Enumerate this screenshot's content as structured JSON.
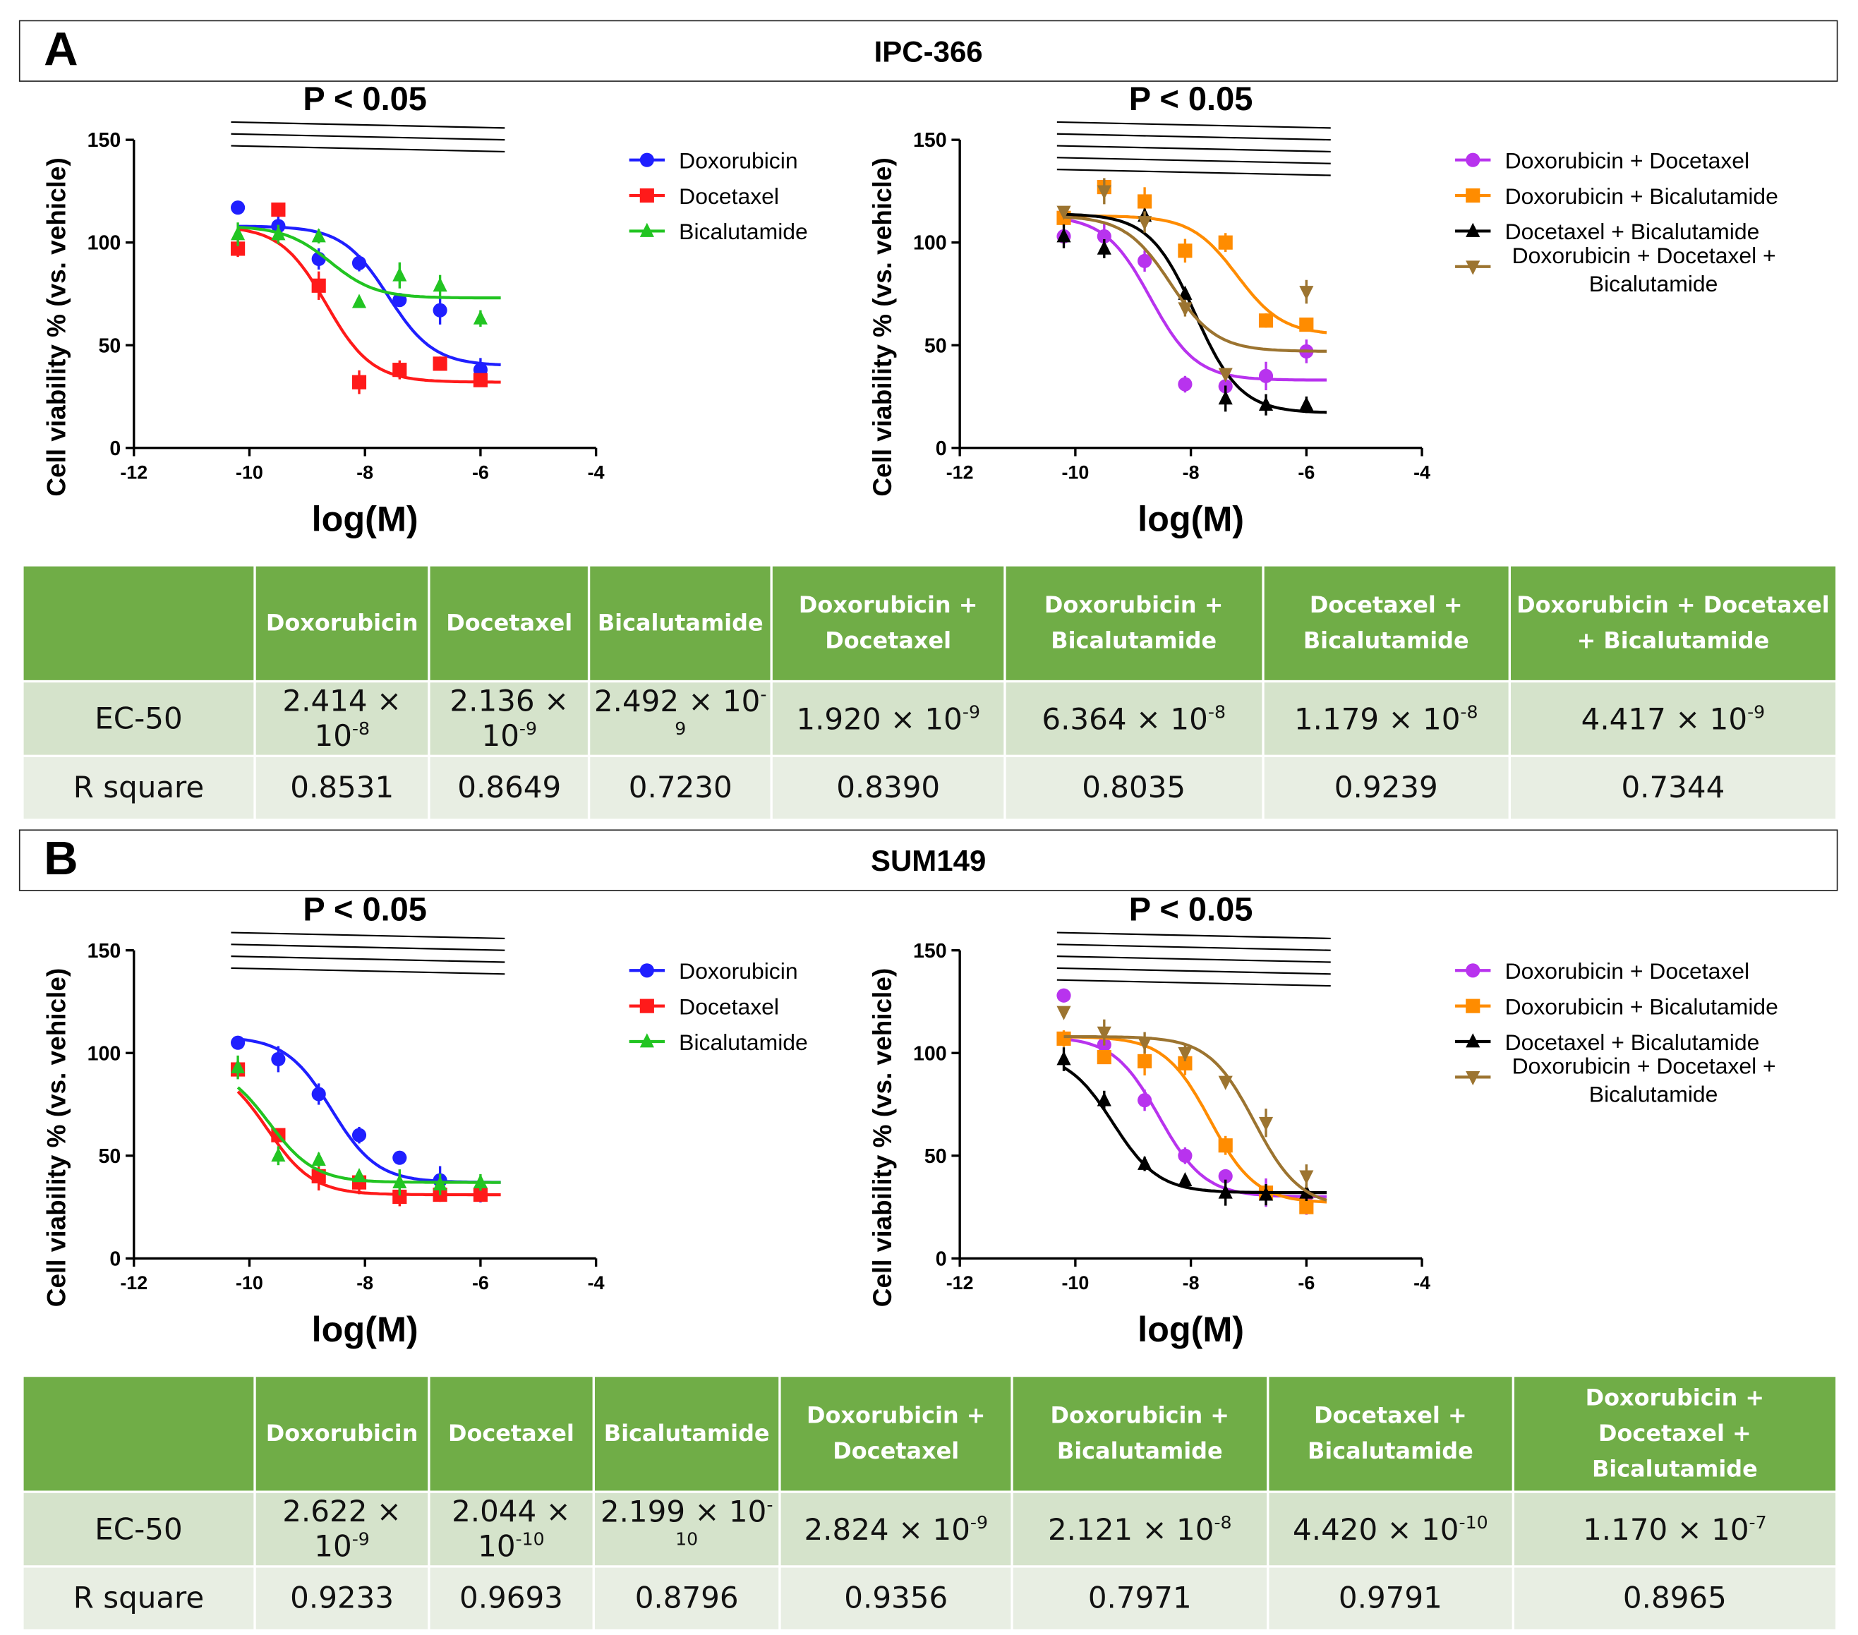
{
  "panels": [
    {
      "letter": "A",
      "title": "IPC-366",
      "table": {
        "columns": [
          "",
          "Doxorubicin",
          "Docetaxel",
          "Bicalutamide",
          "Doxorubicin + Docetaxel",
          "Doxorubicin + Bicalutamide",
          "Docetaxel + Bicalutamide",
          "Doxorubicin + Docetaxel + Bicalutamide"
        ],
        "rows": [
          {
            "label": "EC-50",
            "values": [
              {
                "m": "2.414 × 10",
                "e": "-8"
              },
              {
                "m": "2.136 × 10",
                "e": "-9"
              },
              {
                "m": "2.492 × 10",
                "e": "-9"
              },
              {
                "m": "1.920 × 10",
                "e": "-9"
              },
              {
                "m": "6.364 × 10",
                "e": "-8"
              },
              {
                "m": "1.179 × 10",
                "e": "-8"
              },
              {
                "m": "4.417 × 10",
                "e": "-9"
              }
            ]
          },
          {
            "label": "R square",
            "values": [
              {
                "m": "0.8531"
              },
              {
                "m": "0.8649"
              },
              {
                "m": "0.7230"
              },
              {
                "m": "0.8390"
              },
              {
                "m": "0.8035"
              },
              {
                "m": "0.9239"
              },
              {
                "m": "0.7344"
              }
            ]
          }
        ]
      }
    },
    {
      "letter": "B",
      "title": "SUM149",
      "table": {
        "columns": [
          "",
          "Doxorubicin",
          "Docetaxel",
          "Bicalutamide",
          "Doxorubicin + Docetaxel",
          "Doxorubicin + Bicalutamide",
          "Docetaxel + Bicalutamide",
          "Doxorubicin + Docetaxel + Bicalutamide"
        ],
        "rows": [
          {
            "label": "EC-50",
            "values": [
              {
                "m": "2.622 × 10",
                "e": "-9"
              },
              {
                "m": "2.044 × 10",
                "e": "-10"
              },
              {
                "m": "2.199 × 10",
                "e": "-10"
              },
              {
                "m": "2.824 × 10",
                "e": "-9"
              },
              {
                "m": "2.121 × 10",
                "e": "-8"
              },
              {
                "m": "4.420 × 10",
                "e": "-10"
              },
              {
                "m": "1.170 × 10",
                "e": "-7"
              }
            ]
          },
          {
            "label": "R square",
            "values": [
              {
                "m": "0.9233"
              },
              {
                "m": "0.9693"
              },
              {
                "m": "0.8796"
              },
              {
                "m": "0.9356"
              },
              {
                "m": "0.7971"
              },
              {
                "m": "0.9791"
              },
              {
                "m": "0.8965"
              }
            ]
          }
        ]
      }
    }
  ],
  "chart_data": [
    {
      "type": "scatter",
      "panel": "A",
      "position": "left",
      "title": "P < 0.05",
      "sig_lines": 3,
      "xlabel": "log(M)",
      "ylabel": "Cell viability % (vs. vehicle)",
      "xlim": [
        -12,
        -4
      ],
      "ylim": [
        0,
        150
      ],
      "xticks": [
        "-12",
        "-10",
        "-8",
        "-6",
        "-4"
      ],
      "yticks": [
        "0",
        "50",
        "100",
        "150"
      ],
      "legend": "right",
      "x": [
        -10.2,
        -9.5,
        -8.8,
        -8.1,
        -7.4,
        -6.7,
        -6.0
      ],
      "series": [
        {
          "name": "Doxorubicin",
          "color": "#1f1fff",
          "marker": "circle",
          "values": [
            117,
            108,
            92,
            90,
            72,
            67,
            38
          ],
          "fit": {
            "top": 108,
            "bottom": 40,
            "logEC50": -7.6
          }
        },
        {
          "name": "Docetaxel",
          "color": "#ff1a1a",
          "marker": "square",
          "values": [
            97,
            116,
            79,
            32,
            38,
            41,
            33
          ],
          "fit": {
            "top": 108,
            "bottom": 32,
            "logEC50": -8.67
          }
        },
        {
          "name": "Bicalutamide",
          "color": "#22c422",
          "marker": "triangle",
          "values": [
            104,
            104,
            103,
            71,
            84,
            79,
            63
          ],
          "fit": {
            "top": 108,
            "bottom": 73,
            "logEC50": -8.6
          }
        }
      ]
    },
    {
      "type": "scatter",
      "panel": "A",
      "position": "right",
      "title": "P < 0.05",
      "sig_lines": 5,
      "xlabel": "log(M)",
      "ylabel": "Cell viability % (vs. vehicle)",
      "xlim": [
        -12,
        -4
      ],
      "ylim": [
        0,
        150
      ],
      "xticks": [
        "-12",
        "-10",
        "-8",
        "-6",
        "-4"
      ],
      "yticks": [
        "0",
        "50",
        "100",
        "150"
      ],
      "legend": "right",
      "x": [
        -10.2,
        -9.5,
        -8.8,
        -8.1,
        -7.4,
        -6.7,
        -6.0
      ],
      "series": [
        {
          "name": "Doxorubicin + Docetaxel",
          "color": "#b833ee",
          "marker": "circle",
          "values": [
            103,
            103,
            91,
            31,
            30,
            35,
            47
          ],
          "fit": {
            "top": 113,
            "bottom": 33,
            "logEC50": -8.7
          }
        },
        {
          "name": "Doxorubicin + Bicalutamide",
          "color": "#ff8c00",
          "marker": "square",
          "values": [
            112,
            127,
            120,
            96,
            100,
            62,
            60
          ],
          "fit": {
            "top": 113,
            "bottom": 55,
            "logEC50": -7.2
          }
        },
        {
          "name": "Docetaxel + Bicalutamide",
          "color": "#000000",
          "marker": "triangle",
          "values": [
            103,
            97,
            113,
            75,
            24,
            21,
            21
          ],
          "fit": {
            "top": 114,
            "bottom": 17,
            "logEC50": -7.93
          }
        },
        {
          "name": "Doxorubicin + Docetaxel + Bicalutamide",
          "color": "#9c7430",
          "marker": "triangle-down",
          "values": [
            115,
            125,
            110,
            68,
            36,
            null,
            76
          ],
          "fit": {
            "top": 113,
            "bottom": 47,
            "logEC50": -8.35
          }
        }
      ]
    },
    {
      "type": "scatter",
      "panel": "B",
      "position": "left",
      "title": "P < 0.05",
      "sig_lines": 4,
      "xlabel": "log(M)",
      "ylabel": "Cell viability % (vs. vehicle)",
      "xlim": [
        -12,
        -4
      ],
      "ylim": [
        0,
        150
      ],
      "xticks": [
        "-12",
        "-10",
        "-8",
        "-6",
        "-4"
      ],
      "yticks": [
        "0",
        "50",
        "100",
        "150"
      ],
      "legend": "right",
      "x": [
        -10.2,
        -9.5,
        -8.8,
        -8.1,
        -7.4,
        -6.7,
        -6.0
      ],
      "series": [
        {
          "name": "Doxorubicin",
          "color": "#1f1fff",
          "marker": "circle",
          "values": [
            105,
            97,
            80,
            60,
            49,
            38,
            33
          ],
          "fit": {
            "top": 108,
            "bottom": 37,
            "logEC50": -8.58
          }
        },
        {
          "name": "Docetaxel",
          "color": "#ff1a1a",
          "marker": "square",
          "values": [
            92,
            60,
            40,
            37,
            30,
            31,
            31
          ],
          "fit": {
            "top": 95,
            "bottom": 31,
            "logEC50": -9.69
          }
        },
        {
          "name": "Bicalutamide",
          "color": "#22c422",
          "marker": "triangle",
          "values": [
            93,
            50,
            48,
            40,
            37,
            36,
            37
          ],
          "fit": {
            "top": 95,
            "bottom": 37,
            "logEC50": -9.66
          }
        }
      ]
    },
    {
      "type": "scatter",
      "panel": "B",
      "position": "right",
      "title": "P < 0.05",
      "sig_lines": 5,
      "xlabel": "log(M)",
      "ylabel": "Cell viability % (vs. vehicle)",
      "xlim": [
        -12,
        -4
      ],
      "ylim": [
        0,
        150
      ],
      "xticks": [
        "-12",
        "-10",
        "-8",
        "-6",
        "-4"
      ],
      "yticks": [
        "0",
        "50",
        "100",
        "150"
      ],
      "legend": "right",
      "x": [
        -10.2,
        -9.5,
        -8.8,
        -8.1,
        -7.4,
        -6.7,
        -6.0
      ],
      "series": [
        {
          "name": "Doxorubicin + Docetaxel",
          "color": "#b833ee",
          "marker": "circle",
          "values": [
            128,
            104,
            77,
            50,
            40,
            32,
            27
          ],
          "fit": {
            "top": 108,
            "bottom": 30,
            "logEC50": -8.55
          }
        },
        {
          "name": "Doxorubicin + Bicalutamide",
          "color": "#ff8c00",
          "marker": "square",
          "values": [
            107,
            98,
            96,
            95,
            55,
            32,
            25
          ],
          "fit": {
            "top": 108,
            "bottom": 27,
            "logEC50": -7.67
          }
        },
        {
          "name": "Docetaxel + Bicalutamide",
          "color": "#000000",
          "marker": "triangle",
          "values": [
            97,
            77,
            46,
            38,
            32,
            31,
            32
          ],
          "fit": {
            "top": 100,
            "bottom": 32,
            "logEC50": -9.35
          }
        },
        {
          "name": "Doxorubicin + Docetaxel + Bicalutamide",
          "color": "#9c7430",
          "marker": "triangle-down",
          "values": [
            120,
            110,
            105,
            100,
            86,
            66,
            40
          ],
          "fit": {
            "top": 108,
            "bottom": 25,
            "logEC50": -6.9
          }
        }
      ]
    }
  ]
}
